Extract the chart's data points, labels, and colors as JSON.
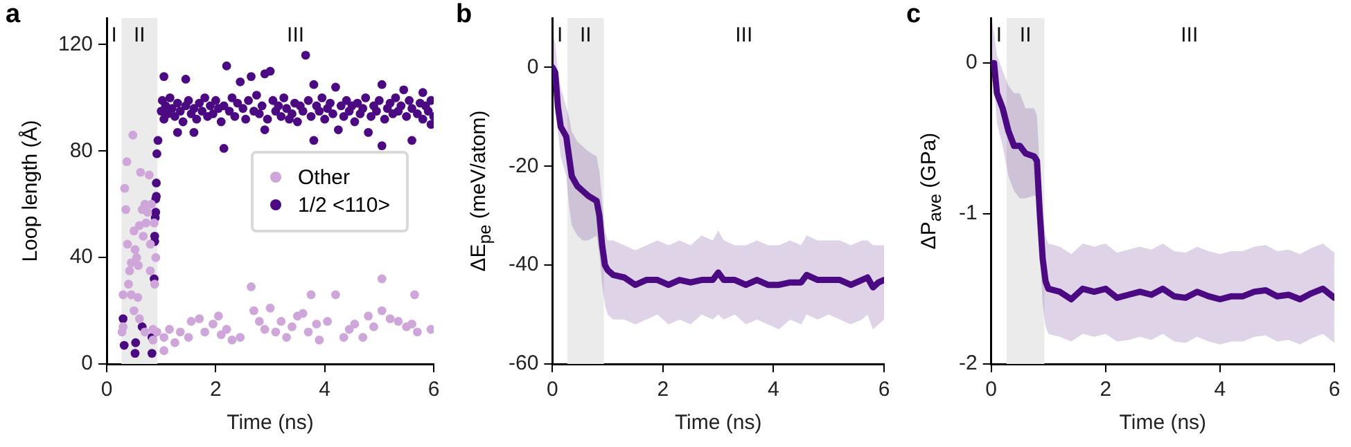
{
  "chart_data": [
    {
      "type": "scatter",
      "title": "a",
      "xlabel": "Time (ns)",
      "ylabel": "Loop length (Å)",
      "xlim": [
        0,
        6
      ],
      "ylim": [
        0,
        130
      ],
      "xticks": [
        0,
        2,
        4,
        6
      ],
      "yticks": [
        0,
        40,
        80,
        120
      ],
      "grid": false,
      "legend": "right",
      "marker": "circle",
      "bands": [
        {
          "axis": "x",
          "from": 0.27,
          "to": 0.93,
          "label": "II",
          "color": "#ebebeb"
        }
      ],
      "annotations": [
        "I",
        "III"
      ],
      "series": [
        {
          "name": "Other",
          "color": "#cfa6da",
          "x": [
            0.28,
            0.3,
            0.33,
            0.35,
            0.37,
            0.3,
            0.38,
            0.4,
            0.42,
            0.45,
            0.45,
            0.48,
            0.5,
            0.5,
            0.52,
            0.55,
            0.57,
            0.58,
            0.6,
            0.62,
            0.65,
            0.67,
            0.7,
            0.72,
            0.75,
            0.78,
            0.8,
            0.8,
            0.82,
            0.85,
            0.87,
            0.88,
            0.9,
            0.7,
            0.6,
            0.85,
            0.92,
            1.05,
            1.05,
            1.15,
            1.25,
            1.35,
            1.5,
            1.55,
            1.7,
            1.8,
            1.95,
            2.05,
            2.1,
            2.2,
            2.3,
            2.45,
            2.65,
            2.7,
            2.8,
            2.9,
            3.0,
            3.1,
            3.2,
            3.3,
            3.4,
            3.5,
            3.6,
            3.7,
            3.75,
            3.85,
            3.9,
            4.05,
            4.2,
            4.35,
            4.45,
            4.55,
            4.7,
            4.8,
            4.9,
            5.05,
            5.05,
            5.2,
            5.35,
            5.5,
            5.6,
            5.65,
            5.7,
            5.95
          ],
          "values": [
            12,
            14,
            66,
            58,
            76,
            26,
            45,
            30,
            35,
            38,
            26,
            86,
            50,
            20,
            43,
            40,
            25,
            37,
            52,
            72,
            58,
            48,
            60,
            53,
            57,
            71,
            45,
            35,
            60,
            13,
            53,
            30,
            40,
            12,
            17,
            9,
            12,
            5,
            10,
            13,
            8,
            12,
            10,
            16,
            17,
            12,
            15,
            18,
            11,
            13,
            9,
            10,
            29,
            20,
            16,
            13,
            21,
            12,
            16,
            10,
            14,
            18,
            19,
            12,
            26,
            15,
            9,
            16,
            26,
            10,
            13,
            15,
            10,
            18,
            14,
            32,
            20,
            17,
            16,
            14,
            15,
            26,
            12,
            13
          ]
        },
        {
          "name": "1/2 <110>",
          "color": "#4b0a82",
          "x": [
            0.3,
            0.32,
            0.52,
            0.53,
            0.65,
            0.83,
            0.83,
            0.87,
            0.88,
            0.89,
            0.9,
            0.91,
            0.92,
            0.94,
            0.9,
            0.88,
            0.91,
            1.05,
            1.45,
            2.2,
            2.45,
            2.65,
            2.9,
            3.0,
            3.65,
            3.8,
            4.2,
            5.05,
            5.45,
            5.8,
            1.6,
            2.15,
            2.9,
            3.8,
            4.25,
            5.05,
            5.6,
            5.95,
            1.3,
            3.35,
            4.8,
            1.0,
            1.02,
            1.05,
            1.08,
            1.12,
            1.16,
            1.2,
            1.25,
            1.3,
            1.35,
            1.4,
            1.45,
            1.5,
            1.55,
            1.6,
            1.65,
            1.7,
            1.75,
            1.8,
            1.85,
            1.9,
            1.95,
            2.0,
            2.05,
            2.1,
            2.15,
            2.25,
            2.3,
            2.35,
            2.4,
            2.5,
            2.55,
            2.6,
            2.7,
            2.75,
            2.8,
            2.85,
            2.95,
            3.05,
            3.1,
            3.15,
            3.2,
            3.25,
            3.3,
            3.4,
            3.45,
            3.5,
            3.55,
            3.6,
            3.7,
            3.75,
            3.85,
            3.9,
            3.95,
            4.0,
            4.05,
            4.1,
            4.15,
            4.3,
            4.35,
            4.4,
            4.45,
            4.5,
            4.55,
            4.6,
            4.65,
            4.7,
            4.75,
            4.85,
            4.9,
            4.95,
            5.0,
            5.1,
            5.15,
            5.2,
            5.25,
            5.3,
            5.35,
            5.4,
            5.5,
            5.55,
            5.6,
            5.7,
            5.75,
            5.8,
            5.85,
            5.9,
            5.95,
            6.0
          ],
          "values": [
            17,
            7,
            4,
            8,
            14,
            10,
            4,
            32,
            46,
            55,
            62,
            68,
            79,
            84,
            57,
            48,
            63,
            108,
            107,
            112,
            106,
            108,
            109,
            110,
            116,
            105,
            104,
            105,
            103,
            102,
            87,
            81,
            88,
            84,
            88,
            82,
            84,
            90,
            87,
            92,
            87,
            95,
            99,
            92,
            97,
            94,
            100,
            96,
            93,
            98,
            95,
            91,
            97,
            99,
            94,
            96,
            92,
            98,
            95,
            100,
            93,
            97,
            94,
            99,
            96,
            91,
            97,
            95,
            100,
            93,
            98,
            96,
            92,
            99,
            95,
            101,
            94,
            97,
            92,
            99,
            95,
            97,
            93,
            100,
            96,
            94,
            98,
            91,
            97,
            95,
            99,
            93,
            97,
            95,
            100,
            92,
            96,
            98,
            94,
            97,
            93,
            99,
            95,
            97,
            91,
            98,
            94,
            96,
            100,
            93,
            97,
            95,
            99,
            92,
            96,
            98,
            94,
            100,
            95,
            97,
            93,
            99,
            96,
            94,
            98,
            92,
            97,
            95,
            99,
            93
          ]
        }
      ]
    },
    {
      "type": "line",
      "title": "b",
      "xlabel": "Time (ns)",
      "ylabel": "ΔE$_{pe}$ (meV/atom)",
      "xlim": [
        0,
        6
      ],
      "ylim": [
        -60,
        10
      ],
      "xticks": [
        0,
        2,
        4,
        6
      ],
      "yticks": [
        -60,
        -40,
        -20,
        0
      ],
      "grid": false,
      "marker": "none",
      "bands": [
        {
          "axis": "x",
          "from": 0.27,
          "to": 0.93,
          "label": "II",
          "color": "#ebebeb"
        }
      ],
      "annotations": [
        "I",
        "III"
      ],
      "series": [
        {
          "color": "#4b0a82",
          "x": [
            0,
            0.05,
            0.1,
            0.15,
            0.25,
            0.3,
            0.35,
            0.45,
            0.55,
            0.65,
            0.8,
            0.85,
            0.9,
            0.95,
            1.0,
            1.1,
            1.3,
            1.5,
            1.7,
            1.9,
            2.1,
            2.3,
            2.5,
            2.7,
            2.9,
            3.0,
            3.1,
            3.3,
            3.5,
            3.7,
            3.9,
            4.1,
            4.3,
            4.5,
            4.6,
            4.8,
            5.0,
            5.2,
            5.4,
            5.6,
            5.7,
            5.8,
            5.9,
            6.0
          ],
          "values": [
            0,
            -1,
            -8,
            -12,
            -14,
            -18,
            -22,
            -24,
            -25,
            -26,
            -27,
            -30,
            -36,
            -40,
            -41,
            -42,
            -42.5,
            -44,
            -43,
            -43,
            -44,
            -43,
            -43.5,
            -43,
            -43,
            -41.5,
            -43,
            -43,
            -44,
            -43,
            -44,
            -44,
            -43.5,
            -43.5,
            -42,
            -43,
            -43,
            -43,
            -44,
            -43,
            -42.5,
            -44.5,
            -43.5,
            -43
          ],
          "lower": [
            -3,
            -6,
            -13,
            -18,
            -22,
            -28,
            -32,
            -34,
            -35,
            -35,
            -34,
            -38,
            -44,
            -48,
            -50,
            -51,
            -51,
            -52,
            -51,
            -50,
            -52,
            -51,
            -52,
            -50,
            -51,
            -50,
            -51,
            -50,
            -52,
            -51,
            -52,
            -53,
            -51,
            -52,
            -50,
            -51,
            -50,
            -51,
            -52,
            -51,
            -50,
            -53,
            -52,
            -51
          ],
          "upper": [
            7,
            5,
            -1,
            -4,
            -8,
            -10,
            -13,
            -15,
            -16,
            -17,
            -18,
            -21,
            -27,
            -33,
            -35,
            -35,
            -36,
            -37,
            -36,
            -35,
            -36,
            -35,
            -36,
            -34,
            -35,
            -33,
            -35,
            -36,
            -36,
            -35,
            -36,
            -36,
            -35,
            -36,
            -34,
            -35,
            -35,
            -35,
            -36,
            -35,
            -35,
            -36,
            -36,
            -36
          ]
        }
      ]
    },
    {
      "type": "line",
      "title": "c",
      "xlabel": "Time (ns)",
      "ylabel": "ΔP$_{ave}$ (GPa)",
      "xlim": [
        0,
        6
      ],
      "ylim": [
        -2,
        0.3
      ],
      "xticks": [
        0,
        2,
        4,
        6
      ],
      "yticks": [
        -2,
        -1,
        0
      ],
      "grid": false,
      "marker": "none",
      "bands": [
        {
          "axis": "x",
          "from": 0.27,
          "to": 0.93,
          "label": "II",
          "color": "#ebebeb"
        }
      ],
      "annotations": [
        "I",
        "III"
      ],
      "series": [
        {
          "color": "#4b0a82",
          "x": [
            0,
            0.05,
            0.1,
            0.2,
            0.3,
            0.4,
            0.5,
            0.6,
            0.75,
            0.8,
            0.85,
            0.9,
            0.95,
            1.0,
            1.2,
            1.4,
            1.6,
            1.8,
            2.0,
            2.2,
            2.4,
            2.6,
            2.8,
            3.0,
            3.2,
            3.4,
            3.6,
            3.8,
            4.0,
            4.2,
            4.4,
            4.6,
            4.8,
            5.0,
            5.2,
            5.4,
            5.6,
            5.8,
            6.0
          ],
          "values": [
            0,
            0,
            -0.2,
            -0.3,
            -0.45,
            -0.55,
            -0.55,
            -0.6,
            -0.62,
            -0.65,
            -1.0,
            -1.3,
            -1.45,
            -1.5,
            -1.52,
            -1.57,
            -1.5,
            -1.52,
            -1.5,
            -1.56,
            -1.54,
            -1.52,
            -1.54,
            -1.5,
            -1.55,
            -1.56,
            -1.52,
            -1.55,
            -1.57,
            -1.55,
            -1.55,
            -1.52,
            -1.51,
            -1.55,
            -1.54,
            -1.57,
            -1.53,
            -1.5,
            -1.56
          ],
          "lower": [
            -0.1,
            -0.15,
            -0.4,
            -0.55,
            -0.75,
            -0.85,
            -0.9,
            -0.9,
            -0.88,
            -0.9,
            -1.25,
            -1.6,
            -1.75,
            -1.8,
            -1.82,
            -1.85,
            -1.8,
            -1.82,
            -1.8,
            -1.85,
            -1.84,
            -1.82,
            -1.84,
            -1.8,
            -1.85,
            -1.86,
            -1.82,
            -1.85,
            -1.87,
            -1.85,
            -1.85,
            -1.82,
            -1.81,
            -1.85,
            -1.84,
            -1.87,
            -1.83,
            -1.8,
            -1.86
          ],
          "upper": [
            0.3,
            0.2,
            0.05,
            -0.05,
            -0.15,
            -0.2,
            -0.2,
            -0.3,
            -0.3,
            -0.35,
            -0.7,
            -1.0,
            -1.15,
            -1.2,
            -1.22,
            -1.27,
            -1.2,
            -1.22,
            -1.2,
            -1.26,
            -1.24,
            -1.22,
            -1.24,
            -1.2,
            -1.25,
            -1.26,
            -1.22,
            -1.25,
            -1.27,
            -1.25,
            -1.25,
            -1.22,
            -1.21,
            -1.25,
            -1.24,
            -1.27,
            -1.23,
            -1.2,
            -1.26
          ]
        }
      ]
    }
  ]
}
